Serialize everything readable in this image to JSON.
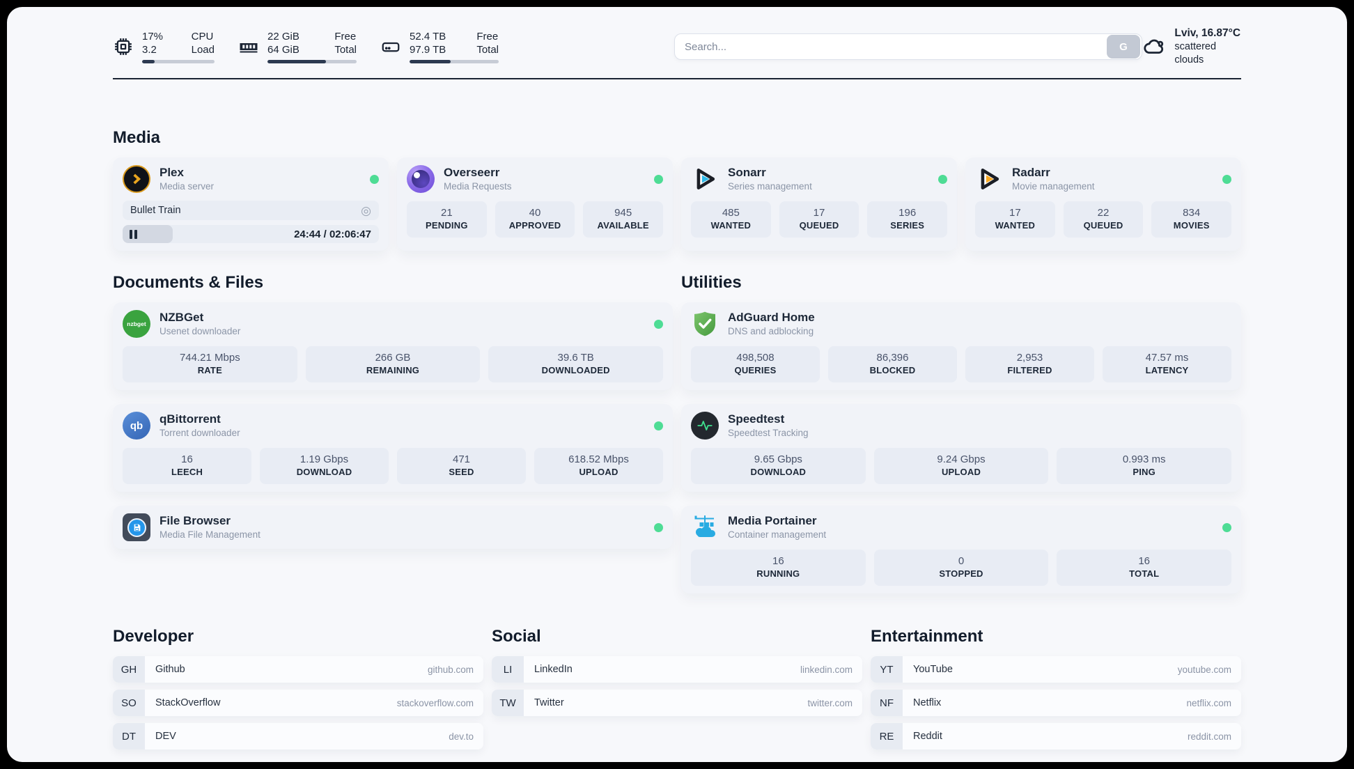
{
  "colors": {
    "accent_green": "#4edc95",
    "bar_fill": "#2c3950"
  },
  "header": {
    "cpu": {
      "line1_value": "17%",
      "line2_value": "3.2",
      "line1_label": "CPU",
      "line2_label": "Load",
      "progress_pct": 17
    },
    "ram": {
      "line1_value": "22 GiB",
      "line2_value": "64 GiB",
      "line1_label": "Free",
      "line2_label": "Total",
      "progress_pct": 66
    },
    "disk": {
      "line1_value": "52.4 TB",
      "line2_value": "97.9 TB",
      "line1_label": "Free",
      "line2_label": "Total",
      "progress_pct": 46
    },
    "search": {
      "placeholder": "Search...",
      "button_label": "G"
    },
    "weather": {
      "location_temp": "Lviv, 16.87°C",
      "condition": "scattered clouds"
    }
  },
  "sections": {
    "media": {
      "title": "Media"
    },
    "documents": {
      "title": "Documents & Files"
    },
    "utilities": {
      "title": "Utilities"
    }
  },
  "apps": {
    "plex": {
      "name": "Plex",
      "description": "Media server",
      "now_playing": {
        "title": "Bullet Train",
        "time_display": "24:44 / 02:06:47",
        "progress_pct": 19.5,
        "session_icon": "target-circle"
      }
    },
    "overseerr": {
      "name": "Overseerr",
      "description": "Media Requests",
      "stats": [
        {
          "value": "21",
          "label": "PENDING"
        },
        {
          "value": "40",
          "label": "APPROVED"
        },
        {
          "value": "945",
          "label": "AVAILABLE"
        }
      ]
    },
    "sonarr": {
      "name": "Sonarr",
      "description": "Series management",
      "stats": [
        {
          "value": "485",
          "label": "WANTED"
        },
        {
          "value": "17",
          "label": "QUEUED"
        },
        {
          "value": "196",
          "label": "SERIES"
        }
      ]
    },
    "radarr": {
      "name": "Radarr",
      "description": "Movie management",
      "stats": [
        {
          "value": "17",
          "label": "WANTED"
        },
        {
          "value": "22",
          "label": "QUEUED"
        },
        {
          "value": "834",
          "label": "MOVIES"
        }
      ]
    },
    "nzbget": {
      "name": "NZBGet",
      "description": "Usenet downloader",
      "stats": [
        {
          "value": "744.21 Mbps",
          "label": "RATE"
        },
        {
          "value": "266 GB",
          "label": "REMAINING"
        },
        {
          "value": "39.6 TB",
          "label": "DOWNLOADED"
        }
      ]
    },
    "qbittorrent": {
      "name": "qBittorrent",
      "description": "Torrent downloader",
      "icon_text": "qb",
      "stats": [
        {
          "value": "16",
          "label": "LEECH"
        },
        {
          "value": "1.19 Gbps",
          "label": "DOWNLOAD"
        },
        {
          "value": "471",
          "label": "SEED"
        },
        {
          "value": "618.52 Mbps",
          "label": "UPLOAD"
        }
      ]
    },
    "filebrowser": {
      "name": "File Browser",
      "description": "Media File Management"
    },
    "adguard": {
      "name": "AdGuard Home",
      "description": "DNS and adblocking",
      "stats": [
        {
          "value": "498,508",
          "label": "QUERIES"
        },
        {
          "value": "86,396",
          "label": "BLOCKED"
        },
        {
          "value": "2,953",
          "label": "FILTERED"
        },
        {
          "value": "47.57 ms",
          "label": "LATENCY"
        }
      ]
    },
    "speedtest": {
      "name": "Speedtest",
      "description": "Speedtest Tracking",
      "stats": [
        {
          "value": "9.65 Gbps",
          "label": "DOWNLOAD"
        },
        {
          "value": "9.24 Gbps",
          "label": "UPLOAD"
        },
        {
          "value": "0.993 ms",
          "label": "PING"
        }
      ]
    },
    "portainer": {
      "name": "Media Portainer",
      "description": "Container management",
      "stats": [
        {
          "value": "16",
          "label": "RUNNING"
        },
        {
          "value": "0",
          "label": "STOPPED"
        },
        {
          "value": "16",
          "label": "TOTAL"
        }
      ]
    },
    "nzbget_icon_text": "nzbget"
  },
  "bookmarks": {
    "developer": {
      "title": "Developer",
      "items": [
        {
          "abbr": "GH",
          "name": "Github",
          "url": "github.com"
        },
        {
          "abbr": "SO",
          "name": "StackOverflow",
          "url": "stackoverflow.com"
        },
        {
          "abbr": "DT",
          "name": "DEV",
          "url": "dev.to"
        }
      ]
    },
    "social": {
      "title": "Social",
      "items": [
        {
          "abbr": "LI",
          "name": "LinkedIn",
          "url": "linkedin.com"
        },
        {
          "abbr": "TW",
          "name": "Twitter",
          "url": "twitter.com"
        }
      ]
    },
    "entertainment": {
      "title": "Entertainment",
      "items": [
        {
          "abbr": "YT",
          "name": "YouTube",
          "url": "youtube.com"
        },
        {
          "abbr": "NF",
          "name": "Netflix",
          "url": "netflix.com"
        },
        {
          "abbr": "RE",
          "name": "Reddit",
          "url": "reddit.com"
        }
      ]
    }
  }
}
